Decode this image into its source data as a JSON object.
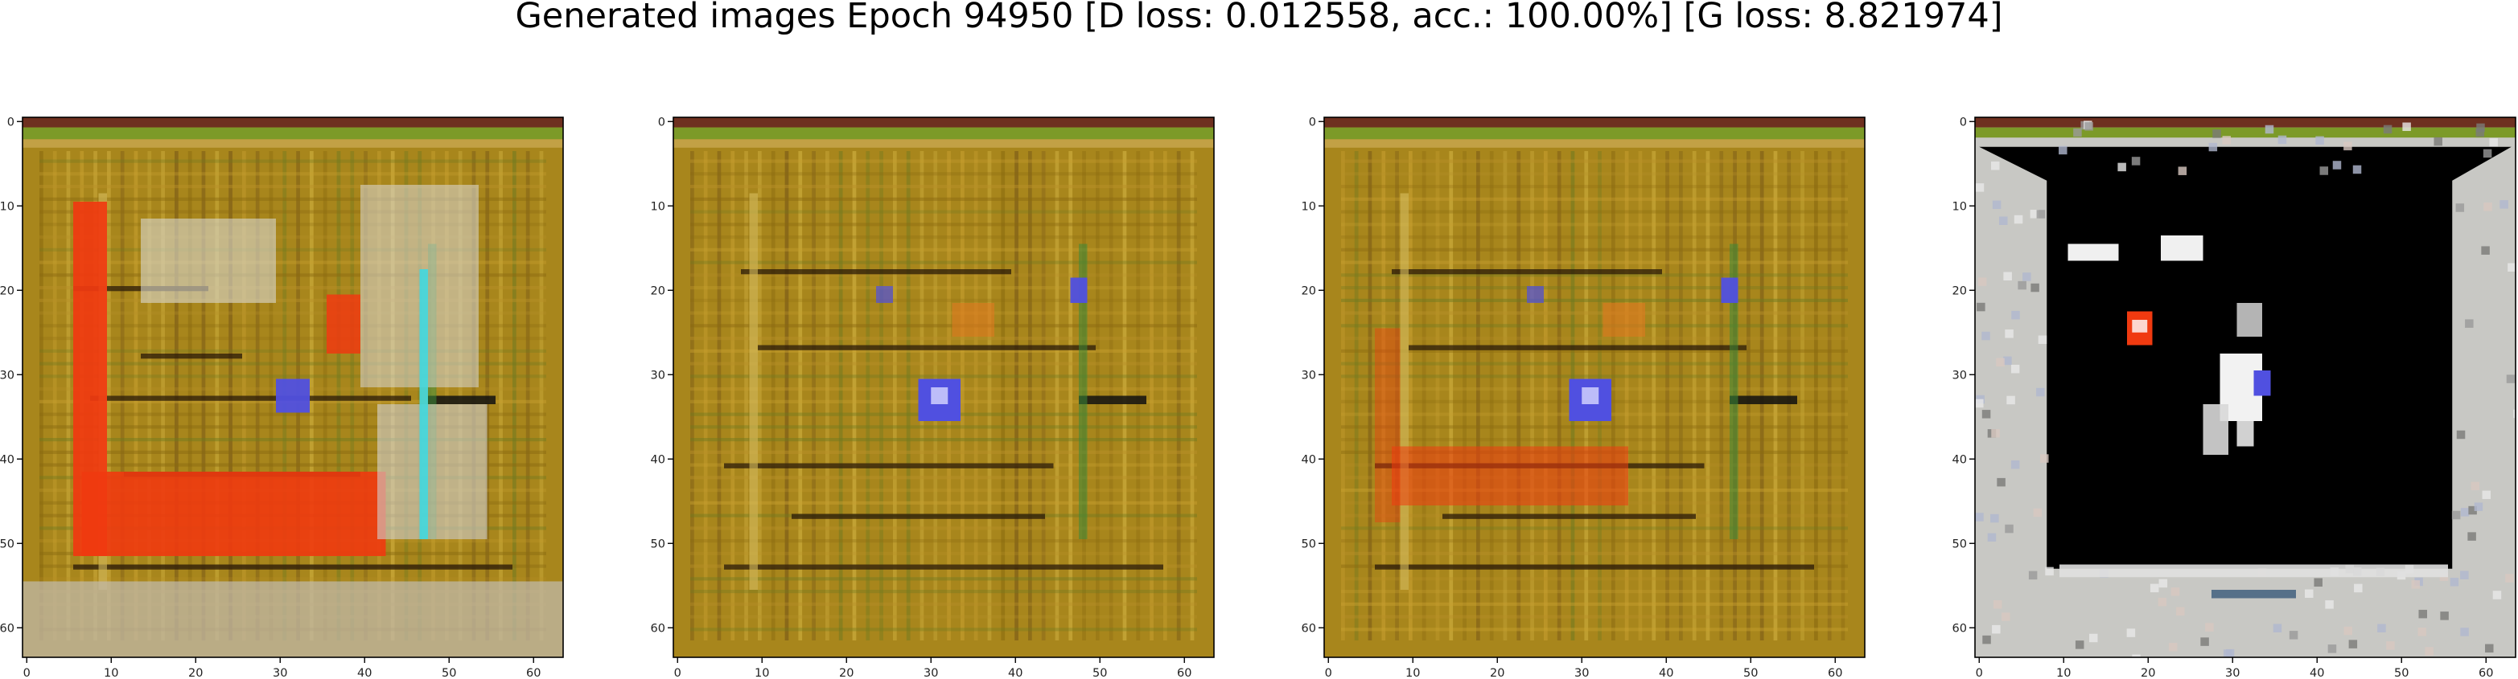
{
  "figure": {
    "title": "Generated images Epoch 94950 [D loss: 0.012558, acc.: 100.00%] [G loss: 8.821974]"
  },
  "colors": {
    "olive_background": "#a8861c",
    "frame_top": "#6e3020",
    "frame_green": "#7c9a28",
    "red_orange": "#f03a10",
    "blue_purple": "#5050e0",
    "black": "#000000",
    "light_gray": "#c8c8c4"
  },
  "chart_data": [
    {
      "type": "heatmap",
      "title": "",
      "xlabel": "",
      "ylabel": "",
      "xlim": [
        -0.5,
        63.5
      ],
      "ylim": [
        63.5,
        -0.5
      ],
      "xticks": [
        0,
        10,
        20,
        30,
        40,
        50,
        60
      ],
      "yticks": [
        0,
        10,
        20,
        30,
        40,
        50,
        60
      ],
      "grid": false
    },
    {
      "type": "heatmap",
      "title": "",
      "xlabel": "",
      "ylabel": "",
      "xlim": [
        -0.5,
        63.5
      ],
      "ylim": [
        63.5,
        -0.5
      ],
      "xticks": [
        0,
        10,
        20,
        30,
        40,
        50,
        60
      ],
      "yticks": [
        0,
        10,
        20,
        30,
        40,
        50,
        60
      ],
      "grid": false
    },
    {
      "type": "heatmap",
      "title": "",
      "xlabel": "",
      "ylabel": "",
      "xlim": [
        -0.5,
        63.5
      ],
      "ylim": [
        63.5,
        -0.5
      ],
      "xticks": [
        0,
        10,
        20,
        30,
        40,
        50,
        60
      ],
      "yticks": [
        0,
        10,
        20,
        30,
        40,
        50,
        60
      ],
      "grid": false
    },
    {
      "type": "heatmap",
      "title": "",
      "xlabel": "",
      "ylabel": "",
      "xlim": [
        -0.5,
        63.5
      ],
      "ylim": [
        63.5,
        -0.5
      ],
      "xticks": [
        0,
        10,
        20,
        30,
        40,
        50,
        60
      ],
      "yticks": [
        0,
        10,
        20,
        30,
        40,
        50,
        60
      ],
      "grid": false
    }
  ]
}
